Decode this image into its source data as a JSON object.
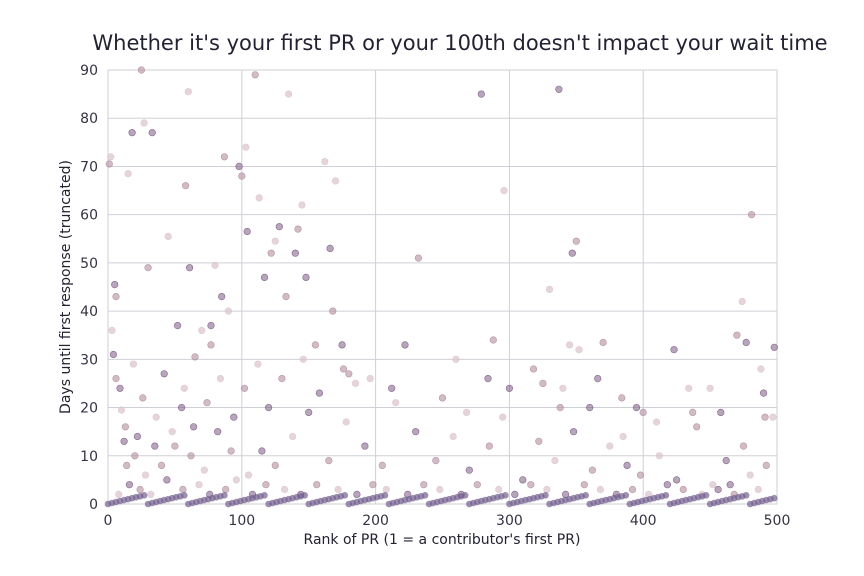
{
  "chart_data": {
    "type": "scatter",
    "title": "Whether it's your first PR or your 100th doesn't impact your wait time",
    "xlabel": "Rank of PR (1 = a contributor's first PR)",
    "ylabel": "Days until first response (truncated)",
    "xlim": [
      0,
      500
    ],
    "ylim": [
      0,
      90
    ],
    "xticks": [
      "0",
      "100",
      "200",
      "300",
      "400",
      "500"
    ],
    "yticks": [
      "0",
      "10",
      "20",
      "30",
      "40",
      "50",
      "60",
      "70",
      "80",
      "90"
    ],
    "grid": true,
    "legend": "none",
    "colors": {
      "pale": "#dcc7cf",
      "mid": "#b28d9f",
      "dark": "#7b5b84",
      "base": "#74608e"
    },
    "points": [
      [
        1,
        70.5
      ],
      [
        2,
        72
      ],
      [
        5,
        45.5
      ],
      [
        6,
        43
      ],
      [
        3,
        36
      ],
      [
        4,
        31
      ],
      [
        6,
        26
      ],
      [
        10,
        19.5
      ],
      [
        12,
        13
      ],
      [
        14,
        8
      ],
      [
        15,
        68.5
      ],
      [
        18,
        77
      ],
      [
        25,
        90
      ],
      [
        27,
        79
      ],
      [
        33,
        77
      ],
      [
        30,
        49
      ],
      [
        45,
        55.5
      ],
      [
        52,
        37
      ],
      [
        58,
        66
      ],
      [
        60,
        85.5
      ],
      [
        61,
        49
      ],
      [
        65,
        30.5
      ],
      [
        70,
        36
      ],
      [
        77,
        37
      ],
      [
        77,
        33
      ],
      [
        80,
        49.5
      ],
      [
        85,
        43
      ],
      [
        87,
        72
      ],
      [
        90,
        40
      ],
      [
        98,
        70
      ],
      [
        100,
        68
      ],
      [
        103,
        74
      ],
      [
        104,
        56.5
      ],
      [
        110,
        89
      ],
      [
        113,
        63.5
      ],
      [
        117,
        47
      ],
      [
        122,
        52
      ],
      [
        125,
        54.5
      ],
      [
        128,
        57.5
      ],
      [
        133,
        43
      ],
      [
        135,
        85
      ],
      [
        140,
        52
      ],
      [
        142,
        57
      ],
      [
        145,
        62
      ],
      [
        148,
        47
      ],
      [
        155,
        33
      ],
      [
        162,
        71
      ],
      [
        166,
        53
      ],
      [
        168,
        40
      ],
      [
        170,
        67
      ],
      [
        175,
        33
      ],
      [
        180,
        27
      ],
      [
        185,
        25
      ],
      [
        222,
        33
      ],
      [
        232,
        51
      ],
      [
        260,
        30
      ],
      [
        279,
        85
      ],
      [
        288,
        34
      ],
      [
        296,
        65
      ],
      [
        300,
        24
      ],
      [
        325,
        25
      ],
      [
        330,
        44.5
      ],
      [
        337,
        86
      ],
      [
        338,
        20
      ],
      [
        345,
        33
      ],
      [
        347,
        52
      ],
      [
        350,
        54.5
      ],
      [
        352,
        32
      ],
      [
        360,
        20
      ],
      [
        370,
        33.5
      ],
      [
        385,
        14
      ],
      [
        395,
        20
      ],
      [
        400,
        19
      ],
      [
        410,
        17
      ],
      [
        423,
        32
      ],
      [
        437,
        19
      ],
      [
        450,
        24
      ],
      [
        458,
        19
      ],
      [
        470,
        35
      ],
      [
        474,
        42
      ],
      [
        477,
        33.5
      ],
      [
        481,
        60
      ],
      [
        488,
        28
      ],
      [
        490,
        23
      ],
      [
        491,
        18
      ],
      [
        497,
        18
      ],
      [
        498,
        32.5
      ],
      [
        492,
        8
      ],
      [
        480,
        6
      ],
      [
        465,
        4
      ],
      [
        20,
        10
      ],
      [
        28,
        6
      ],
      [
        35,
        12
      ],
      [
        40,
        8
      ],
      [
        48,
        15
      ],
      [
        55,
        20
      ],
      [
        62,
        10
      ],
      [
        72,
        7
      ],
      [
        82,
        15
      ],
      [
        92,
        11
      ],
      [
        105,
        6
      ],
      [
        115,
        11
      ],
      [
        125,
        8
      ],
      [
        138,
        14
      ],
      [
        150,
        19
      ],
      [
        165,
        9
      ],
      [
        178,
        17
      ],
      [
        192,
        12
      ],
      [
        205,
        8
      ],
      [
        215,
        21
      ],
      [
        230,
        15
      ],
      [
        245,
        9
      ],
      [
        258,
        14
      ],
      [
        270,
        7
      ],
      [
        285,
        12
      ],
      [
        295,
        18
      ],
      [
        310,
        5
      ],
      [
        322,
        13
      ],
      [
        334,
        9
      ],
      [
        348,
        15
      ],
      [
        362,
        7
      ],
      [
        375,
        12
      ],
      [
        388,
        8
      ],
      [
        398,
        6
      ],
      [
        412,
        10
      ],
      [
        425,
        5
      ],
      [
        440,
        16
      ],
      [
        452,
        4
      ],
      [
        462,
        9
      ],
      [
        475,
        12
      ],
      [
        8,
        2
      ],
      [
        16,
        4
      ],
      [
        24,
        3
      ],
      [
        32,
        2
      ],
      [
        44,
        5
      ],
      [
        56,
        3
      ],
      [
        68,
        4
      ],
      [
        76,
        2
      ],
      [
        88,
        3
      ],
      [
        96,
        5
      ],
      [
        108,
        2
      ],
      [
        118,
        4
      ],
      [
        132,
        3
      ],
      [
        144,
        2
      ],
      [
        156,
        4
      ],
      [
        172,
        3
      ],
      [
        186,
        2
      ],
      [
        198,
        4
      ],
      [
        208,
        3
      ],
      [
        224,
        2
      ],
      [
        236,
        4
      ],
      [
        248,
        3
      ],
      [
        264,
        2
      ],
      [
        276,
        4
      ],
      [
        292,
        3
      ],
      [
        304,
        2
      ],
      [
        316,
        4
      ],
      [
        328,
        3
      ],
      [
        342,
        2
      ],
      [
        356,
        4
      ],
      [
        368,
        3
      ],
      [
        380,
        2
      ],
      [
        392,
        3
      ],
      [
        404,
        2
      ],
      [
        418,
        4
      ],
      [
        430,
        3
      ],
      [
        444,
        2
      ],
      [
        456,
        3
      ],
      [
        468,
        2
      ],
      [
        486,
        3
      ],
      [
        9,
        24
      ],
      [
        13,
        16
      ],
      [
        19,
        29
      ],
      [
        22,
        14
      ],
      [
        26,
        22
      ],
      [
        36,
        18
      ],
      [
        42,
        27
      ],
      [
        50,
        12
      ],
      [
        57,
        24
      ],
      [
        64,
        16
      ],
      [
        74,
        21
      ],
      [
        84,
        26
      ],
      [
        94,
        18
      ],
      [
        102,
        24
      ],
      [
        112,
        29
      ],
      [
        120,
        20
      ],
      [
        130,
        26
      ],
      [
        146,
        30
      ],
      [
        158,
        23
      ],
      [
        176,
        28
      ],
      [
        196,
        26
      ],
      [
        212,
        24
      ],
      [
        250,
        22
      ],
      [
        268,
        19
      ],
      [
        284,
        26
      ],
      [
        318,
        28
      ],
      [
        340,
        24
      ],
      [
        366,
        26
      ],
      [
        384,
        22
      ],
      [
        434,
        24
      ]
    ]
  }
}
